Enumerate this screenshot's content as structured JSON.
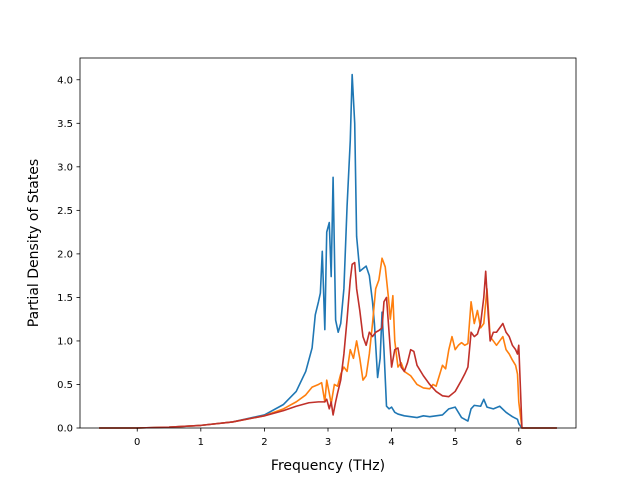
{
  "chart_data": {
    "type": "line",
    "xlabel": "Frequency (THz)",
    "ylabel": "Partial Density of States",
    "xlim": [
      -0.9,
      6.9
    ],
    "ylim": [
      0,
      4.25
    ],
    "xticks": [
      0,
      1,
      2,
      3,
      4,
      5,
      6
    ],
    "yticks": [
      0.0,
      0.5,
      1.0,
      1.5,
      2.0,
      2.5,
      3.0,
      3.5,
      4.0
    ],
    "xtick_labels": [
      "0",
      "1",
      "2",
      "3",
      "4",
      "5",
      "6"
    ],
    "ytick_labels": [
      "0.0",
      "0.5",
      "1.0",
      "1.5",
      "2.0",
      "2.5",
      "3.0",
      "3.5",
      "4.0"
    ],
    "grid": false,
    "series": [
      {
        "color": "#1f77b4",
        "x": [
          -0.6,
          0.0,
          0.5,
          1.0,
          1.5,
          2.0,
          2.3,
          2.5,
          2.65,
          2.75,
          2.8,
          2.85,
          2.88,
          2.91,
          2.95,
          2.98,
          3.02,
          3.05,
          3.08,
          3.12,
          3.16,
          3.2,
          3.25,
          3.3,
          3.35,
          3.38,
          3.42,
          3.45,
          3.5,
          3.55,
          3.6,
          3.65,
          3.7,
          3.73,
          3.78,
          3.82,
          3.85,
          3.88,
          3.92,
          3.96,
          4.0,
          4.05,
          4.1,
          4.2,
          4.3,
          4.4,
          4.5,
          4.6,
          4.7,
          4.8,
          4.9,
          5.0,
          5.1,
          5.2,
          5.25,
          5.3,
          5.4,
          5.45,
          5.5,
          5.6,
          5.7,
          5.8,
          5.9,
          5.98,
          6.0,
          6.05,
          6.2,
          6.6
        ],
        "y": [
          0.0,
          0.0,
          0.01,
          0.03,
          0.07,
          0.15,
          0.27,
          0.42,
          0.65,
          0.92,
          1.3,
          1.45,
          1.55,
          2.03,
          1.13,
          2.25,
          2.36,
          1.74,
          2.88,
          1.24,
          1.1,
          1.2,
          1.6,
          2.55,
          3.3,
          4.06,
          3.5,
          2.2,
          1.8,
          1.83,
          1.86,
          1.75,
          1.45,
          1.2,
          0.58,
          0.8,
          1.33,
          0.9,
          0.25,
          0.22,
          0.24,
          0.18,
          0.16,
          0.14,
          0.13,
          0.12,
          0.14,
          0.13,
          0.14,
          0.15,
          0.22,
          0.24,
          0.12,
          0.08,
          0.22,
          0.26,
          0.25,
          0.33,
          0.24,
          0.22,
          0.25,
          0.18,
          0.13,
          0.1,
          0.05,
          0.0,
          0.0,
          0.0
        ]
      },
      {
        "color": "#ff7f0e",
        "x": [
          -0.6,
          0.0,
          0.5,
          1.0,
          1.5,
          2.0,
          2.3,
          2.5,
          2.65,
          2.75,
          2.85,
          2.9,
          2.95,
          2.98,
          3.02,
          3.05,
          3.1,
          3.15,
          3.2,
          3.25,
          3.3,
          3.35,
          3.4,
          3.45,
          3.5,
          3.55,
          3.6,
          3.65,
          3.7,
          3.75,
          3.8,
          3.85,
          3.9,
          3.95,
          3.98,
          4.02,
          4.05,
          4.1,
          4.15,
          4.2,
          4.3,
          4.4,
          4.5,
          4.6,
          4.65,
          4.7,
          4.75,
          4.8,
          4.85,
          4.9,
          4.95,
          5.0,
          5.05,
          5.1,
          5.15,
          5.2,
          5.25,
          5.3,
          5.35,
          5.4,
          5.45,
          5.5,
          5.55,
          5.6,
          5.65,
          5.7,
          5.75,
          5.8,
          5.85,
          5.9,
          5.95,
          5.98,
          6.0,
          6.05,
          6.2,
          6.6
        ],
        "y": [
          0.0,
          0.0,
          0.01,
          0.03,
          0.07,
          0.14,
          0.22,
          0.3,
          0.38,
          0.47,
          0.5,
          0.52,
          0.3,
          0.55,
          0.4,
          0.28,
          0.5,
          0.48,
          0.62,
          0.7,
          0.65,
          0.9,
          0.8,
          1.0,
          0.8,
          0.55,
          0.6,
          0.85,
          1.2,
          1.6,
          1.7,
          1.95,
          1.85,
          1.5,
          1.25,
          1.52,
          1.0,
          0.7,
          0.75,
          0.65,
          0.6,
          0.5,
          0.46,
          0.45,
          0.5,
          0.48,
          0.6,
          0.72,
          0.68,
          0.9,
          1.05,
          0.9,
          0.95,
          0.98,
          0.95,
          0.97,
          1.45,
          1.2,
          1.35,
          1.15,
          1.2,
          1.6,
          1.05,
          1.0,
          0.95,
          1.0,
          1.05,
          0.9,
          0.85,
          0.78,
          0.72,
          0.62,
          0.3,
          0.0,
          0.0,
          0.0
        ]
      },
      {
        "color": "#c0302a",
        "x": [
          -0.6,
          0.0,
          0.5,
          1.0,
          1.5,
          2.0,
          2.3,
          2.5,
          2.7,
          2.85,
          2.95,
          2.98,
          3.02,
          3.05,
          3.08,
          3.12,
          3.15,
          3.2,
          3.25,
          3.3,
          3.35,
          3.38,
          3.42,
          3.45,
          3.5,
          3.55,
          3.6,
          3.65,
          3.7,
          3.75,
          3.8,
          3.85,
          3.88,
          3.92,
          3.96,
          4.0,
          4.05,
          4.1,
          4.15,
          4.2,
          4.25,
          4.3,
          4.35,
          4.4,
          4.5,
          4.6,
          4.7,
          4.8,
          4.9,
          5.0,
          5.1,
          5.15,
          5.2,
          5.25,
          5.3,
          5.35,
          5.4,
          5.45,
          5.48,
          5.52,
          5.55,
          5.6,
          5.65,
          5.7,
          5.75,
          5.8,
          5.85,
          5.9,
          5.95,
          5.98,
          6.0,
          6.05,
          6.2,
          6.6
        ],
        "y": [
          0.0,
          0.0,
          0.01,
          0.03,
          0.07,
          0.14,
          0.2,
          0.25,
          0.29,
          0.3,
          0.3,
          0.33,
          0.22,
          0.3,
          0.15,
          0.3,
          0.4,
          0.55,
          0.85,
          1.25,
          1.7,
          1.88,
          1.9,
          1.6,
          1.35,
          1.05,
          0.95,
          1.1,
          1.05,
          1.1,
          1.12,
          1.15,
          1.45,
          1.5,
          1.1,
          0.7,
          0.9,
          0.92,
          0.7,
          0.65,
          0.75,
          0.9,
          0.88,
          0.72,
          0.6,
          0.5,
          0.42,
          0.37,
          0.36,
          0.42,
          0.55,
          0.62,
          0.7,
          1.1,
          1.05,
          1.08,
          1.2,
          1.5,
          1.8,
          1.3,
          1.0,
          1.1,
          1.1,
          1.15,
          1.2,
          1.1,
          1.05,
          0.95,
          0.9,
          0.85,
          0.95,
          0.0,
          0.0,
          0.0
        ]
      }
    ]
  }
}
